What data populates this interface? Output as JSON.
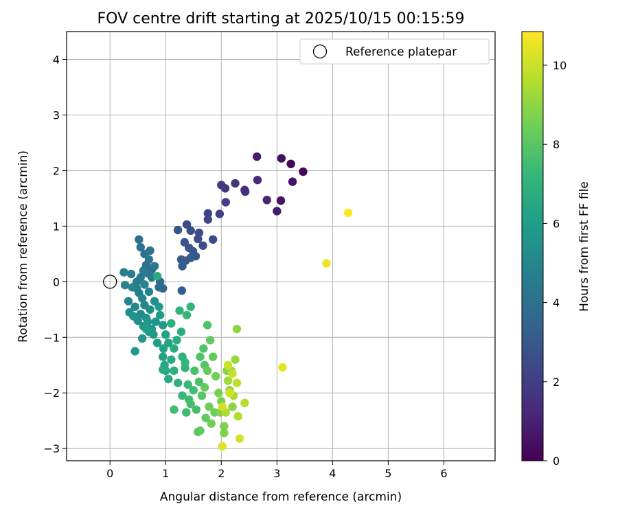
{
  "chart_data": {
    "type": "scatter",
    "title": "FOV centre drift starting at 2025/10/15 00:15:59",
    "xlabel": "Angular distance from reference (arcmin)",
    "ylabel": "Rotation from reference (arcmin)",
    "xlim": [
      -0.78,
      6.92
    ],
    "ylim": [
      -3.22,
      4.5
    ],
    "xticks": [
      0,
      1,
      2,
      3,
      4,
      5,
      6
    ],
    "yticks": [
      -3,
      -2,
      -1,
      0,
      1,
      2,
      3,
      4
    ],
    "grid": true,
    "legend": {
      "position": "top-right",
      "entries": [
        {
          "label": "Reference platepar",
          "marker": "open-circle"
        }
      ]
    },
    "reference_point": {
      "x": 0,
      "y": 0
    },
    "colorbar": {
      "label": "Hours from first FF file",
      "range": [
        0,
        10.85
      ],
      "ticks": [
        0,
        2,
        4,
        6,
        8,
        10
      ],
      "colormap": "viridis",
      "stops": [
        "#440154",
        "#482878",
        "#3e4989",
        "#31688e",
        "#26828e",
        "#1f9e89",
        "#35b779",
        "#6ece58",
        "#b5de2b",
        "#fde725"
      ]
    },
    "series": [
      {
        "color_by": "hours",
        "points": [
          [
            3.47,
            1.98,
            0.1
          ],
          [
            3.25,
            2.12,
            0.2
          ],
          [
            3.08,
            2.22,
            0.4
          ],
          [
            3.28,
            1.8,
            0.5
          ],
          [
            3.07,
            1.46,
            0.6
          ],
          [
            3.0,
            1.27,
            0.8
          ],
          [
            2.64,
            2.25,
            0.9
          ],
          [
            2.82,
            1.47,
            1.1
          ],
          [
            2.65,
            1.83,
            1.2
          ],
          [
            2.43,
            1.62,
            1.4
          ],
          [
            2.42,
            1.65,
            1.5
          ],
          [
            2.25,
            1.77,
            1.6
          ],
          [
            2.07,
            1.68,
            1.8
          ],
          [
            2.0,
            1.74,
            1.9
          ],
          [
            2.08,
            1.43,
            2.0
          ],
          [
            1.97,
            1.22,
            2.1
          ],
          [
            1.76,
            1.23,
            2.2
          ],
          [
            1.76,
            1.12,
            2.3
          ],
          [
            1.85,
            0.76,
            2.4
          ],
          [
            1.6,
            0.88,
            2.5
          ],
          [
            1.38,
            1.03,
            2.5
          ],
          [
            1.58,
            0.77,
            2.6
          ],
          [
            1.67,
            0.65,
            2.7
          ],
          [
            1.45,
            0.92,
            2.6
          ],
          [
            1.22,
            0.93,
            2.8
          ],
          [
            1.34,
            0.71,
            2.8
          ],
          [
            1.49,
            0.55,
            2.9
          ],
          [
            1.42,
            0.61,
            2.9
          ],
          [
            1.54,
            0.46,
            3.0
          ],
          [
            1.28,
            0.4,
            3.0
          ],
          [
            1.36,
            0.38,
            3.1
          ],
          [
            1.45,
            0.43,
            3.1
          ],
          [
            1.3,
            0.28,
            3.2
          ],
          [
            1.29,
            -0.16,
            3.3
          ],
          [
            0.95,
            -0.12,
            3.5
          ],
          [
            0.88,
            -0.1,
            3.6
          ],
          [
            0.9,
            0.0,
            3.7
          ],
          [
            0.75,
            0.22,
            3.8
          ],
          [
            0.65,
            0.3,
            3.9
          ],
          [
            0.52,
            0.76,
            4.0
          ],
          [
            0.55,
            0.62,
            4.1
          ],
          [
            0.62,
            0.5,
            4.1
          ],
          [
            0.72,
            0.56,
            4.2
          ],
          [
            0.8,
            0.28,
            4.2
          ],
          [
            0.7,
            0.4,
            4.3
          ],
          [
            0.68,
            0.15,
            4.3
          ],
          [
            0.75,
            0.08,
            4.4
          ],
          [
            0.6,
            0.2,
            4.4
          ],
          [
            0.55,
            0.08,
            4.5
          ],
          [
            0.48,
            0.0,
            4.5
          ],
          [
            0.38,
            0.14,
            4.6
          ],
          [
            0.48,
            -0.12,
            4.6
          ],
          [
            0.52,
            -0.2,
            4.7
          ],
          [
            0.25,
            0.17,
            4.7
          ],
          [
            0.62,
            -0.05,
            4.8
          ],
          [
            0.7,
            -0.18,
            4.8
          ],
          [
            0.27,
            -0.06,
            4.9
          ],
          [
            0.4,
            -0.1,
            4.9
          ],
          [
            0.58,
            -0.3,
            5.0
          ],
          [
            0.33,
            -0.35,
            5.0
          ],
          [
            0.45,
            -0.45,
            5.1
          ],
          [
            0.62,
            -0.42,
            5.1
          ],
          [
            0.35,
            -0.55,
            5.2
          ],
          [
            0.55,
            -0.58,
            5.2
          ],
          [
            0.72,
            -0.5,
            5.3
          ],
          [
            0.8,
            -0.35,
            5.3
          ],
          [
            0.5,
            -0.7,
            5.4
          ],
          [
            0.65,
            -0.65,
            5.4
          ],
          [
            0.42,
            -0.62,
            5.5
          ],
          [
            0.6,
            -0.8,
            5.5
          ],
          [
            0.7,
            -0.9,
            5.6
          ],
          [
            0.58,
            -1.02,
            5.6
          ],
          [
            0.82,
            -0.72,
            5.7
          ],
          [
            0.75,
            -0.85,
            5.7
          ],
          [
            0.45,
            -1.25,
            5.8
          ],
          [
            0.68,
            -0.72,
            5.8
          ],
          [
            0.88,
            -0.45,
            5.9
          ],
          [
            0.9,
            -0.6,
            5.9
          ],
          [
            0.95,
            -0.78,
            6.0
          ],
          [
            0.78,
            -0.95,
            6.0
          ],
          [
            0.65,
            -0.85,
            6.1
          ],
          [
            0.85,
            -1.1,
            6.1
          ],
          [
            0.96,
            -1.2,
            6.2
          ],
          [
            1.0,
            -0.95,
            6.2
          ],
          [
            1.05,
            -1.1,
            6.3
          ],
          [
            0.85,
            0.1,
            6.6
          ],
          [
            0.95,
            -1.35,
            6.3
          ],
          [
            0.98,
            -1.5,
            6.4
          ],
          [
            1.0,
            -1.6,
            6.4
          ],
          [
            1.1,
            -1.4,
            6.5
          ],
          [
            1.05,
            -1.75,
            6.5
          ],
          [
            0.95,
            -1.58,
            6.6
          ],
          [
            1.15,
            -1.2,
            6.7
          ],
          [
            1.2,
            -1.05,
            6.7
          ],
          [
            1.28,
            -0.9,
            6.8
          ],
          [
            1.1,
            -0.75,
            6.8
          ],
          [
            1.3,
            -1.35,
            6.9
          ],
          [
            1.15,
            -1.6,
            6.9
          ],
          [
            1.22,
            -1.82,
            7.0
          ],
          [
            1.35,
            -1.55,
            7.0
          ],
          [
            1.25,
            -0.52,
            7.1
          ],
          [
            1.38,
            -0.6,
            7.1
          ],
          [
            1.45,
            -0.45,
            7.2
          ],
          [
            1.35,
            -1.45,
            7.2
          ],
          [
            1.4,
            -1.85,
            7.3
          ],
          [
            1.3,
            -2.05,
            7.3
          ],
          [
            1.42,
            -2.12,
            7.4
          ],
          [
            1.37,
            -2.35,
            7.4
          ],
          [
            1.15,
            -2.3,
            7.5
          ],
          [
            1.5,
            -1.95,
            7.5
          ],
          [
            1.45,
            -2.2,
            7.6
          ],
          [
            1.55,
            -2.3,
            7.6
          ],
          [
            1.6,
            -1.8,
            7.7
          ],
          [
            1.52,
            -1.6,
            7.7
          ],
          [
            1.62,
            -1.35,
            7.8
          ],
          [
            1.68,
            -1.2,
            7.8
          ],
          [
            1.75,
            -0.78,
            7.9
          ],
          [
            1.7,
            -1.5,
            7.9
          ],
          [
            1.65,
            -2.05,
            8.0
          ],
          [
            1.58,
            -2.7,
            8.0
          ],
          [
            1.62,
            -2.68,
            8.1
          ],
          [
            1.72,
            -2.45,
            8.1
          ],
          [
            1.8,
            -1.05,
            8.2
          ],
          [
            1.85,
            -1.35,
            8.2
          ],
          [
            1.75,
            -1.6,
            8.3
          ],
          [
            1.7,
            -1.9,
            8.3
          ],
          [
            1.78,
            -2.25,
            8.4
          ],
          [
            1.88,
            -2.35,
            8.4
          ],
          [
            1.82,
            -2.55,
            8.5
          ],
          [
            1.9,
            -1.7,
            8.5
          ],
          [
            1.95,
            -2.0,
            8.6
          ],
          [
            2.0,
            -2.15,
            8.6
          ],
          [
            2.05,
            -2.6,
            8.7
          ],
          [
            2.05,
            -2.72,
            8.7
          ],
          [
            1.98,
            -2.35,
            8.8
          ],
          [
            2.1,
            -1.6,
            8.8
          ],
          [
            2.15,
            -1.95,
            8.9
          ],
          [
            2.2,
            -2.25,
            8.9
          ],
          [
            2.28,
            -0.85,
            9.0
          ],
          [
            2.25,
            -1.4,
            9.1
          ],
          [
            2.18,
            -1.6,
            9.2
          ],
          [
            2.12,
            -1.78,
            9.3
          ],
          [
            2.22,
            -2.05,
            9.4
          ],
          [
            2.08,
            -2.35,
            9.5
          ],
          [
            2.3,
            -2.42,
            9.6
          ],
          [
            2.42,
            -2.18,
            9.7
          ],
          [
            2.28,
            -1.82,
            9.8
          ],
          [
            2.2,
            -1.65,
            9.9
          ],
          [
            2.12,
            -1.5,
            10.0
          ],
          [
            2.02,
            -2.25,
            10.1
          ],
          [
            2.15,
            -2.0,
            10.1
          ],
          [
            2.33,
            -2.82,
            10.2
          ],
          [
            2.02,
            -2.96,
            10.3
          ],
          [
            3.1,
            -1.54,
            10.4
          ],
          [
            3.89,
            0.33,
            10.6
          ],
          [
            4.28,
            1.24,
            10.8
          ]
        ]
      }
    ]
  }
}
